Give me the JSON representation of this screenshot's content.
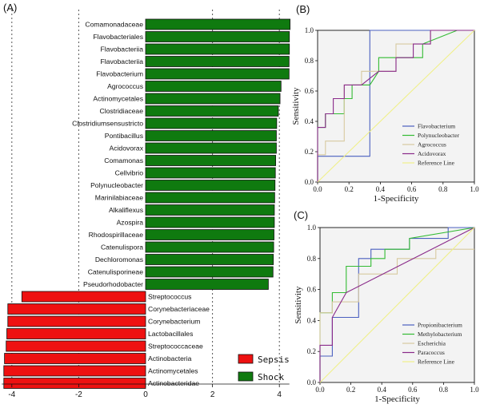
{
  "chart_data": [
    {
      "panel": "(A)",
      "type": "bar",
      "orientation": "horizontal",
      "title": "",
      "xlim": [
        -4.3,
        4.3
      ],
      "xticks": [
        -4,
        -2,
        0,
        2,
        4
      ],
      "grid_x": [
        -4,
        -2,
        2,
        4
      ],
      "legend": [
        {
          "name": "Sepsis",
          "color": "#ee1111"
        },
        {
          "name": "Shock",
          "color": "#0f7a0f"
        }
      ],
      "series": [
        {
          "name": "Shock",
          "color": "#0f7a0f",
          "categories": [
            "Comamonadaceae",
            "Flavobacteriales",
            "Flavobacteriia",
            "Flavobacteriia",
            "Flavobacterium",
            "Agrococcus",
            "Actinomycetales",
            "Clostridiaceae",
            "Clostridiumsensustricto",
            "Pontibacillus",
            "Acidovorax",
            "Comamonas",
            "Cellvibrio",
            "Polynucleobacter",
            "Marinilabiaceae",
            "Alkaliflexus",
            "Azospira",
            "Rhodospirillaceae",
            "Catenulispora",
            "Dechloromonas",
            "Catenulisporineae",
            "Pseudorhodobacter"
          ],
          "values": [
            4.32,
            4.3,
            4.3,
            4.29,
            4.29,
            4.05,
            4.02,
            3.97,
            3.92,
            3.91,
            3.91,
            3.89,
            3.88,
            3.87,
            3.86,
            3.85,
            3.85,
            3.84,
            3.83,
            3.82,
            3.81,
            3.67
          ]
        },
        {
          "name": "Sepsis",
          "color": "#ee1111",
          "categories": [
            "Streptococcus",
            "Corynebacteriaceae",
            "Corynebacterium",
            "Lactobacillales",
            "Streptococcaceae",
            "Actinobacteria",
            "Actinomycetales",
            "Actinobacteridae"
          ],
          "values": [
            -3.7,
            -4.12,
            -4.12,
            -4.15,
            -4.17,
            -4.22,
            -4.24,
            -4.24
          ]
        }
      ]
    },
    {
      "panel": "(B)",
      "type": "line",
      "xlabel": "1-Specificity",
      "ylabel": "Sensitivity",
      "xlim": [
        0,
        1
      ],
      "ylim": [
        0,
        1
      ],
      "ticks": [
        "0.0",
        "0.2",
        "0.4",
        "0.6",
        "0.8",
        "1.0"
      ],
      "series": [
        {
          "name": "Flavobacterium",
          "color": "#4a5fbf",
          "x": [
            0,
            0,
            0.333,
            0.333,
            1
          ],
          "y": [
            0,
            0.17,
            0.17,
            1,
            1
          ]
        },
        {
          "name": "Polynucleobacter",
          "color": "#33bb33",
          "x": [
            0,
            0,
            0.05,
            0.05,
            0.17,
            0.17,
            0.22,
            0.22,
            0.333,
            0.39,
            0.39,
            0.67,
            0.67,
            0.89,
            1
          ],
          "y": [
            0,
            0.36,
            0.36,
            0.45,
            0.45,
            0.55,
            0.55,
            0.64,
            0.64,
            0.73,
            0.82,
            0.82,
            0.91,
            1,
            1
          ]
        },
        {
          "name": "Agrococcus",
          "color": "#d7c9a0",
          "x": [
            0,
            0,
            0.05,
            0.05,
            0.17,
            0.17,
            0.28,
            0.28,
            0.5,
            0.5,
            0.72,
            0.72,
            1
          ],
          "y": [
            0,
            0.18,
            0.18,
            0.27,
            0.27,
            0.64,
            0.64,
            0.73,
            0.73,
            0.91,
            0.91,
            1,
            1
          ]
        },
        {
          "name": "Acidovorax",
          "color": "#8a2b8a",
          "x": [
            0,
            0,
            0.05,
            0.05,
            0.1,
            0.1,
            0.17,
            0.17,
            0.28,
            0.39,
            0.39,
            0.5,
            0.5,
            0.61,
            0.61,
            0.72,
            0.72,
            1
          ],
          "y": [
            0,
            0.36,
            0.36,
            0.45,
            0.45,
            0.55,
            0.55,
            0.64,
            0.64,
            0.73,
            0.73,
            0.73,
            0.82,
            0.82,
            0.91,
            0.91,
            1,
            1
          ]
        },
        {
          "name": "Reference Line",
          "color": "#f0f08a",
          "x": [
            0,
            1
          ],
          "y": [
            0,
            1
          ]
        }
      ]
    },
    {
      "panel": "(C)",
      "type": "line",
      "xlabel": "1-Specificity",
      "ylabel": "Sensitivity",
      "xlim": [
        0,
        1
      ],
      "ylim": [
        0,
        1
      ],
      "ticks": [
        "0.0",
        "0.2",
        "0.4",
        "0.6",
        "0.8",
        "1.0"
      ],
      "series": [
        {
          "name": "Propionibacterium",
          "color": "#4a5fbf",
          "x": [
            0,
            0,
            0.08,
            0.08,
            0.25,
            0.25,
            0.33,
            0.33,
            0.58,
            0.58,
            0.83,
            0.83,
            1
          ],
          "y": [
            0,
            0.17,
            0.17,
            0.42,
            0.42,
            0.8,
            0.8,
            0.86,
            0.86,
            0.93,
            0.93,
            1,
            1
          ]
        },
        {
          "name": "Methylobacterium",
          "color": "#33bb33",
          "x": [
            0,
            0,
            0.08,
            0.08,
            0.17,
            0.17,
            0.33,
            0.33,
            0.42,
            0.42,
            0.58,
            0.58,
            1
          ],
          "y": [
            0,
            0.45,
            0.45,
            0.58,
            0.58,
            0.75,
            0.75,
            0.8,
            0.8,
            0.86,
            0.86,
            0.93,
            1
          ]
        },
        {
          "name": "Escherichia",
          "color": "#d7c9a0",
          "x": [
            0,
            0,
            0.08,
            0.08,
            0.25,
            0.25,
            0.5,
            0.5,
            0.75,
            0.75,
            1
          ],
          "y": [
            0,
            0.45,
            0.45,
            0.52,
            0.52,
            0.7,
            0.7,
            0.8,
            0.8,
            0.86,
            0.86
          ]
        },
        {
          "name": "Paracoccus",
          "color": "#8a2b8a",
          "x": [
            0,
            0,
            0.08,
            0.08,
            0.17,
            1
          ],
          "y": [
            0,
            0.24,
            0.24,
            0.42,
            0.58,
            1
          ]
        },
        {
          "name": "Reference Line",
          "color": "#f0f08a",
          "x": [
            0,
            1
          ],
          "y": [
            0,
            1
          ]
        }
      ]
    }
  ]
}
